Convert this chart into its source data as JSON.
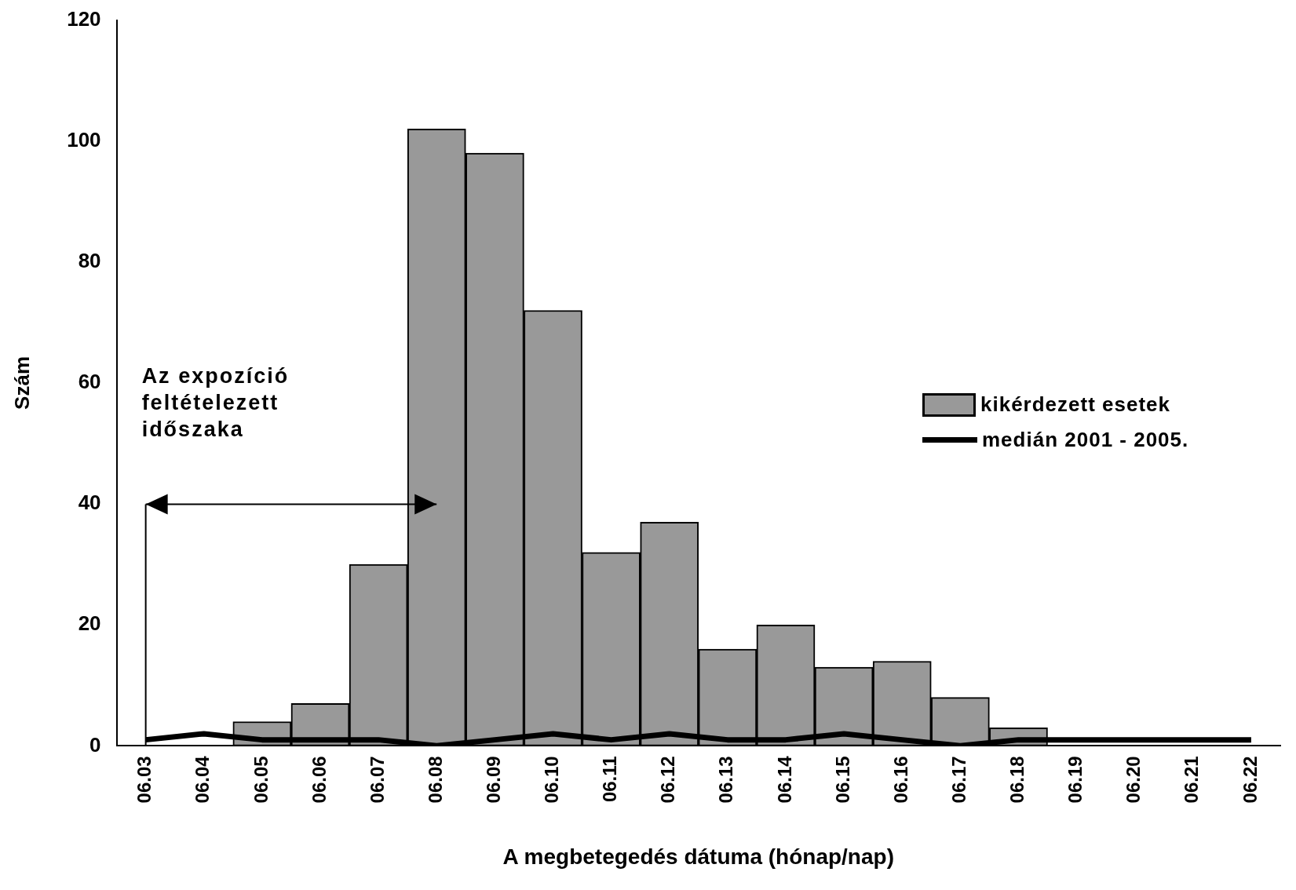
{
  "chart_data": {
    "type": "bar",
    "xlabel": "A megbetegedés dátuma (hónap/nap)",
    "ylabel": "Szám",
    "categories": [
      "06.03",
      "06.04",
      "06.05",
      "06.06",
      "06.07",
      "06.08",
      "06.09",
      "06.10",
      "06.11",
      "06.12",
      "06.13",
      "06.14",
      "06.15",
      "06.16",
      "06.17",
      "06.18",
      "06.19",
      "06.20",
      "06.21",
      "06.22"
    ],
    "series": [
      {
        "name": "kikérdezett esetek",
        "color": "#999999",
        "values": [
          null,
          null,
          4,
          7,
          30,
          102,
          98,
          72,
          32,
          37,
          16,
          20,
          13,
          14,
          8,
          3,
          null,
          null,
          null,
          null
        ]
      },
      {
        "name": "medián 2001 - 2005.",
        "type": "line",
        "color": "#000000",
        "values": [
          1,
          2,
          1,
          1,
          1,
          0,
          1,
          2,
          1,
          2,
          1,
          1,
          2,
          1,
          0,
          1,
          1,
          1,
          1,
          1
        ]
      }
    ],
    "ylim": [
      0,
      120
    ],
    "yticks": [
      0,
      20,
      40,
      60,
      80,
      100,
      120
    ],
    "grid": false,
    "legend": "right",
    "annotations": [
      "Az expozíció feltételezett időszaka"
    ]
  }
}
